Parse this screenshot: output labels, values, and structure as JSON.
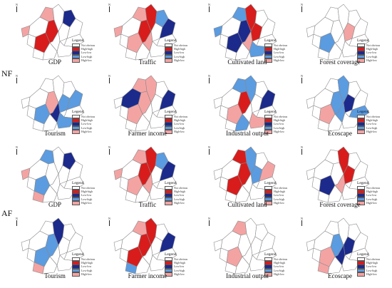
{
  "rows": [
    {
      "label": "NF",
      "panels": [
        {
          "title": "GDP",
          "regions": [
            "#ffffff",
            "#f4a3a3",
            "#d81c1c",
            "#d81c1c",
            "#ffffff",
            "#ffffff",
            "#ffffff",
            "#1c2a8c",
            "#ffffff",
            "#ffffff",
            "#ffffff",
            "#ffffff",
            "#ffffff",
            "#f4a3a3",
            "#ffffff"
          ]
        },
        {
          "title": "Traffic",
          "regions": [
            "#ffffff",
            "#f4a3a3",
            "#f4a3a3",
            "#d81c1c",
            "#d81c1c",
            "#ffffff",
            "#f4a3a3",
            "#5b9be0",
            "#1c2a8c",
            "#ffffff",
            "#ffffff",
            "#ffffff",
            "#ffffff",
            "#f4a3a3",
            "#ffffff"
          ]
        },
        {
          "title": "Cultivated land",
          "regions": [
            "#ffffff",
            "#5b9be0",
            "#1c2a8c",
            "#1c2a8c",
            "#d81c1c",
            "#d81c1c",
            "#f4a3a3",
            "#ffffff",
            "#ffffff",
            "#ffffff",
            "#ffffff",
            "#ffffff",
            "#ffffff",
            "#5b9be0",
            "#5b9be0"
          ]
        },
        {
          "title": "Forest coverage",
          "regions": [
            "#ffffff",
            "#ffffff",
            "#5b9be0",
            "#ffffff",
            "#ffffff",
            "#f4a3a3",
            "#ffffff",
            "#ffffff",
            "#ffffff",
            "#ffffff",
            "#ffffff",
            "#ffffff",
            "#ffffff",
            "#ffffff",
            "#ffffff"
          ]
        }
      ]
    },
    {
      "label": "",
      "panels": [
        {
          "title": "Tourism",
          "regions": [
            "#ffffff",
            "#ffffff",
            "#5b9be0",
            "#f4a3a3",
            "#ffffff",
            "#5b9be0",
            "#1c2a8c",
            "#ffffff",
            "#5b9be0",
            "#ffffff",
            "#ffffff",
            "#ffffff",
            "#ffffff",
            "#ffffff",
            "#5b9be0"
          ]
        },
        {
          "title": "Farmer income",
          "regions": [
            "#1c2a8c",
            "#f4a3a3",
            "#f4a3a3",
            "#f4a3a3",
            "#f4a3a3",
            "#ffffff",
            "#ffffff",
            "#ffffff",
            "#1c2a8c",
            "#ffffff",
            "#ffffff",
            "#ffffff",
            "#ffffff",
            "#ffffff",
            "#ffffff"
          ]
        },
        {
          "title": "Industrial output",
          "regions": [
            "#ffffff",
            "#5b9be0",
            "#f4a3a3",
            "#d81c1c",
            "#5b9be0",
            "#ffffff",
            "#ffffff",
            "#ffffff",
            "#1c2a8c",
            "#ffffff",
            "#ffffff",
            "#5b9be0",
            "#ffffff",
            "#ffffff",
            "#f4a3a3"
          ]
        },
        {
          "title": "Ecoscape",
          "regions": [
            "#ffffff",
            "#ffffff",
            "#f4a3a3",
            "#5b9be0",
            "#5b9be0",
            "#1c2a8c",
            "#5b9be0",
            "#ffffff",
            "#ffffff",
            "#ffffff",
            "#ffffff",
            "#ffffff",
            "#5b9be0",
            "#ffffff",
            "#ffffff"
          ]
        }
      ]
    },
    {
      "label": "AF",
      "panels": [
        {
          "title": "GDP",
          "regions": [
            "#ffffff",
            "#5b9be0",
            "#5b9be0",
            "#ffffff",
            "#ffffff",
            "#ffffff",
            "#ffffff",
            "#1c2a8c",
            "#ffffff",
            "#ffffff",
            "#f4a3a3",
            "#ffffff",
            "#ffffff",
            "#f4a3a3",
            "#ffffff"
          ]
        },
        {
          "title": "Traffic",
          "regions": [
            "#ffffff",
            "#f4a3a3",
            "#f4a3a3",
            "#d81c1c",
            "#d81c1c",
            "#ffffff",
            "#f4a3a3",
            "#5b9be0",
            "#1c2a8c",
            "#ffffff",
            "#ffffff",
            "#ffffff",
            "#ffffff",
            "#f4a3a3",
            "#ffffff"
          ]
        },
        {
          "title": "Cultivated land",
          "regions": [
            "#ffffff",
            "#d81c1c",
            "#d81c1c",
            "#d81c1c",
            "#5b9be0",
            "#5b9be0",
            "#ffffff",
            "#ffffff",
            "#f4a3a3",
            "#ffffff",
            "#ffffff",
            "#ffffff",
            "#ffffff",
            "#ffffff",
            "#ffffff"
          ]
        },
        {
          "title": "Forest coverage",
          "regions": [
            "#ffffff",
            "#ffffff",
            "#1c2a8c",
            "#ffffff",
            "#d81c1c",
            "#d81c1c",
            "#f4a3a3",
            "#ffffff",
            "#ffffff",
            "#ffffff",
            "#ffffff",
            "#ffffff",
            "#ffffff",
            "#ffffff",
            "#ffffff"
          ]
        }
      ]
    },
    {
      "label": "",
      "panels": [
        {
          "title": "Tourism",
          "regions": [
            "#ffffff",
            "#ffffff",
            "#5b9be0",
            "#5b9be0",
            "#1c2a8c",
            "#ffffff",
            "#ffffff",
            "#ffffff",
            "#ffffff",
            "#ffffff",
            "#f4a3a3",
            "#ffffff",
            "#ffffff",
            "#ffffff",
            "#ffffff"
          ]
        },
        {
          "title": "Farmer income",
          "regions": [
            "#ffffff",
            "#f4a3a3",
            "#d81c1c",
            "#d81c1c",
            "#d81c1c",
            "#ffffff",
            "#ffffff",
            "#ffffff",
            "#1c2a8c",
            "#ffffff",
            "#5b9be0",
            "#ffffff",
            "#ffffff",
            "#ffffff",
            "#ffffff"
          ]
        },
        {
          "title": "Industrial output",
          "regions": [
            "#ffffff",
            "#f4a3a3",
            "#f4a3a3",
            "#ffffff",
            "#ffffff",
            "#ffffff",
            "#ffffff",
            "#ffffff",
            "#ffffff",
            "#ffffff",
            "#ffffff",
            "#ffffff",
            "#ffffff",
            "#ffffff",
            "#ffffff"
          ]
        },
        {
          "title": "Ecoscape",
          "regions": [
            "#ffffff",
            "#ffffff",
            "#f4a3a3",
            "#5b9be0",
            "#ffffff",
            "#1c2a8c",
            "#1c2a8c",
            "#ffffff",
            "#ffffff",
            "#ffffff",
            "#f4a3a3",
            "#ffffff",
            "#ffffff",
            "#ffffff",
            "#ffffff"
          ]
        }
      ]
    }
  ],
  "legend": {
    "title": "Legend",
    "items": [
      {
        "label": "Not obvious",
        "color": "#ffffff"
      },
      {
        "label": "High-high",
        "color": "#d81c1c"
      },
      {
        "label": "Low-low",
        "color": "#1c2a8c"
      },
      {
        "label": "Low-high",
        "color": "#5b9be0"
      },
      {
        "label": "High-low",
        "color": "#f4a3a3"
      }
    ]
  },
  "north_label": "N"
}
